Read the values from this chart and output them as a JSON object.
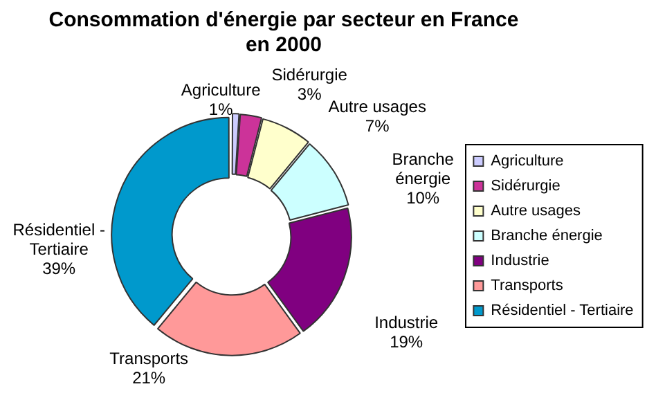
{
  "chart_data": {
    "type": "donut",
    "title": "Consommation d'énergie par secteur en France en 2000",
    "categories": [
      "Agriculture",
      "Sidérurgie",
      "Autre usages",
      "Branche énergie",
      "Industrie",
      "Transports",
      "Résidentiel - Tertiaire"
    ],
    "values": [
      1,
      3,
      7,
      10,
      19,
      21,
      39
    ],
    "value_labels": [
      "1%",
      "3%",
      "7%",
      "10%",
      "19%",
      "21%",
      "39%"
    ],
    "colors": [
      "#ccccff",
      "#cc3399",
      "#ffffcc",
      "#ccffff",
      "#800080",
      "#ff9999",
      "#0099cc"
    ],
    "legend": "right"
  }
}
